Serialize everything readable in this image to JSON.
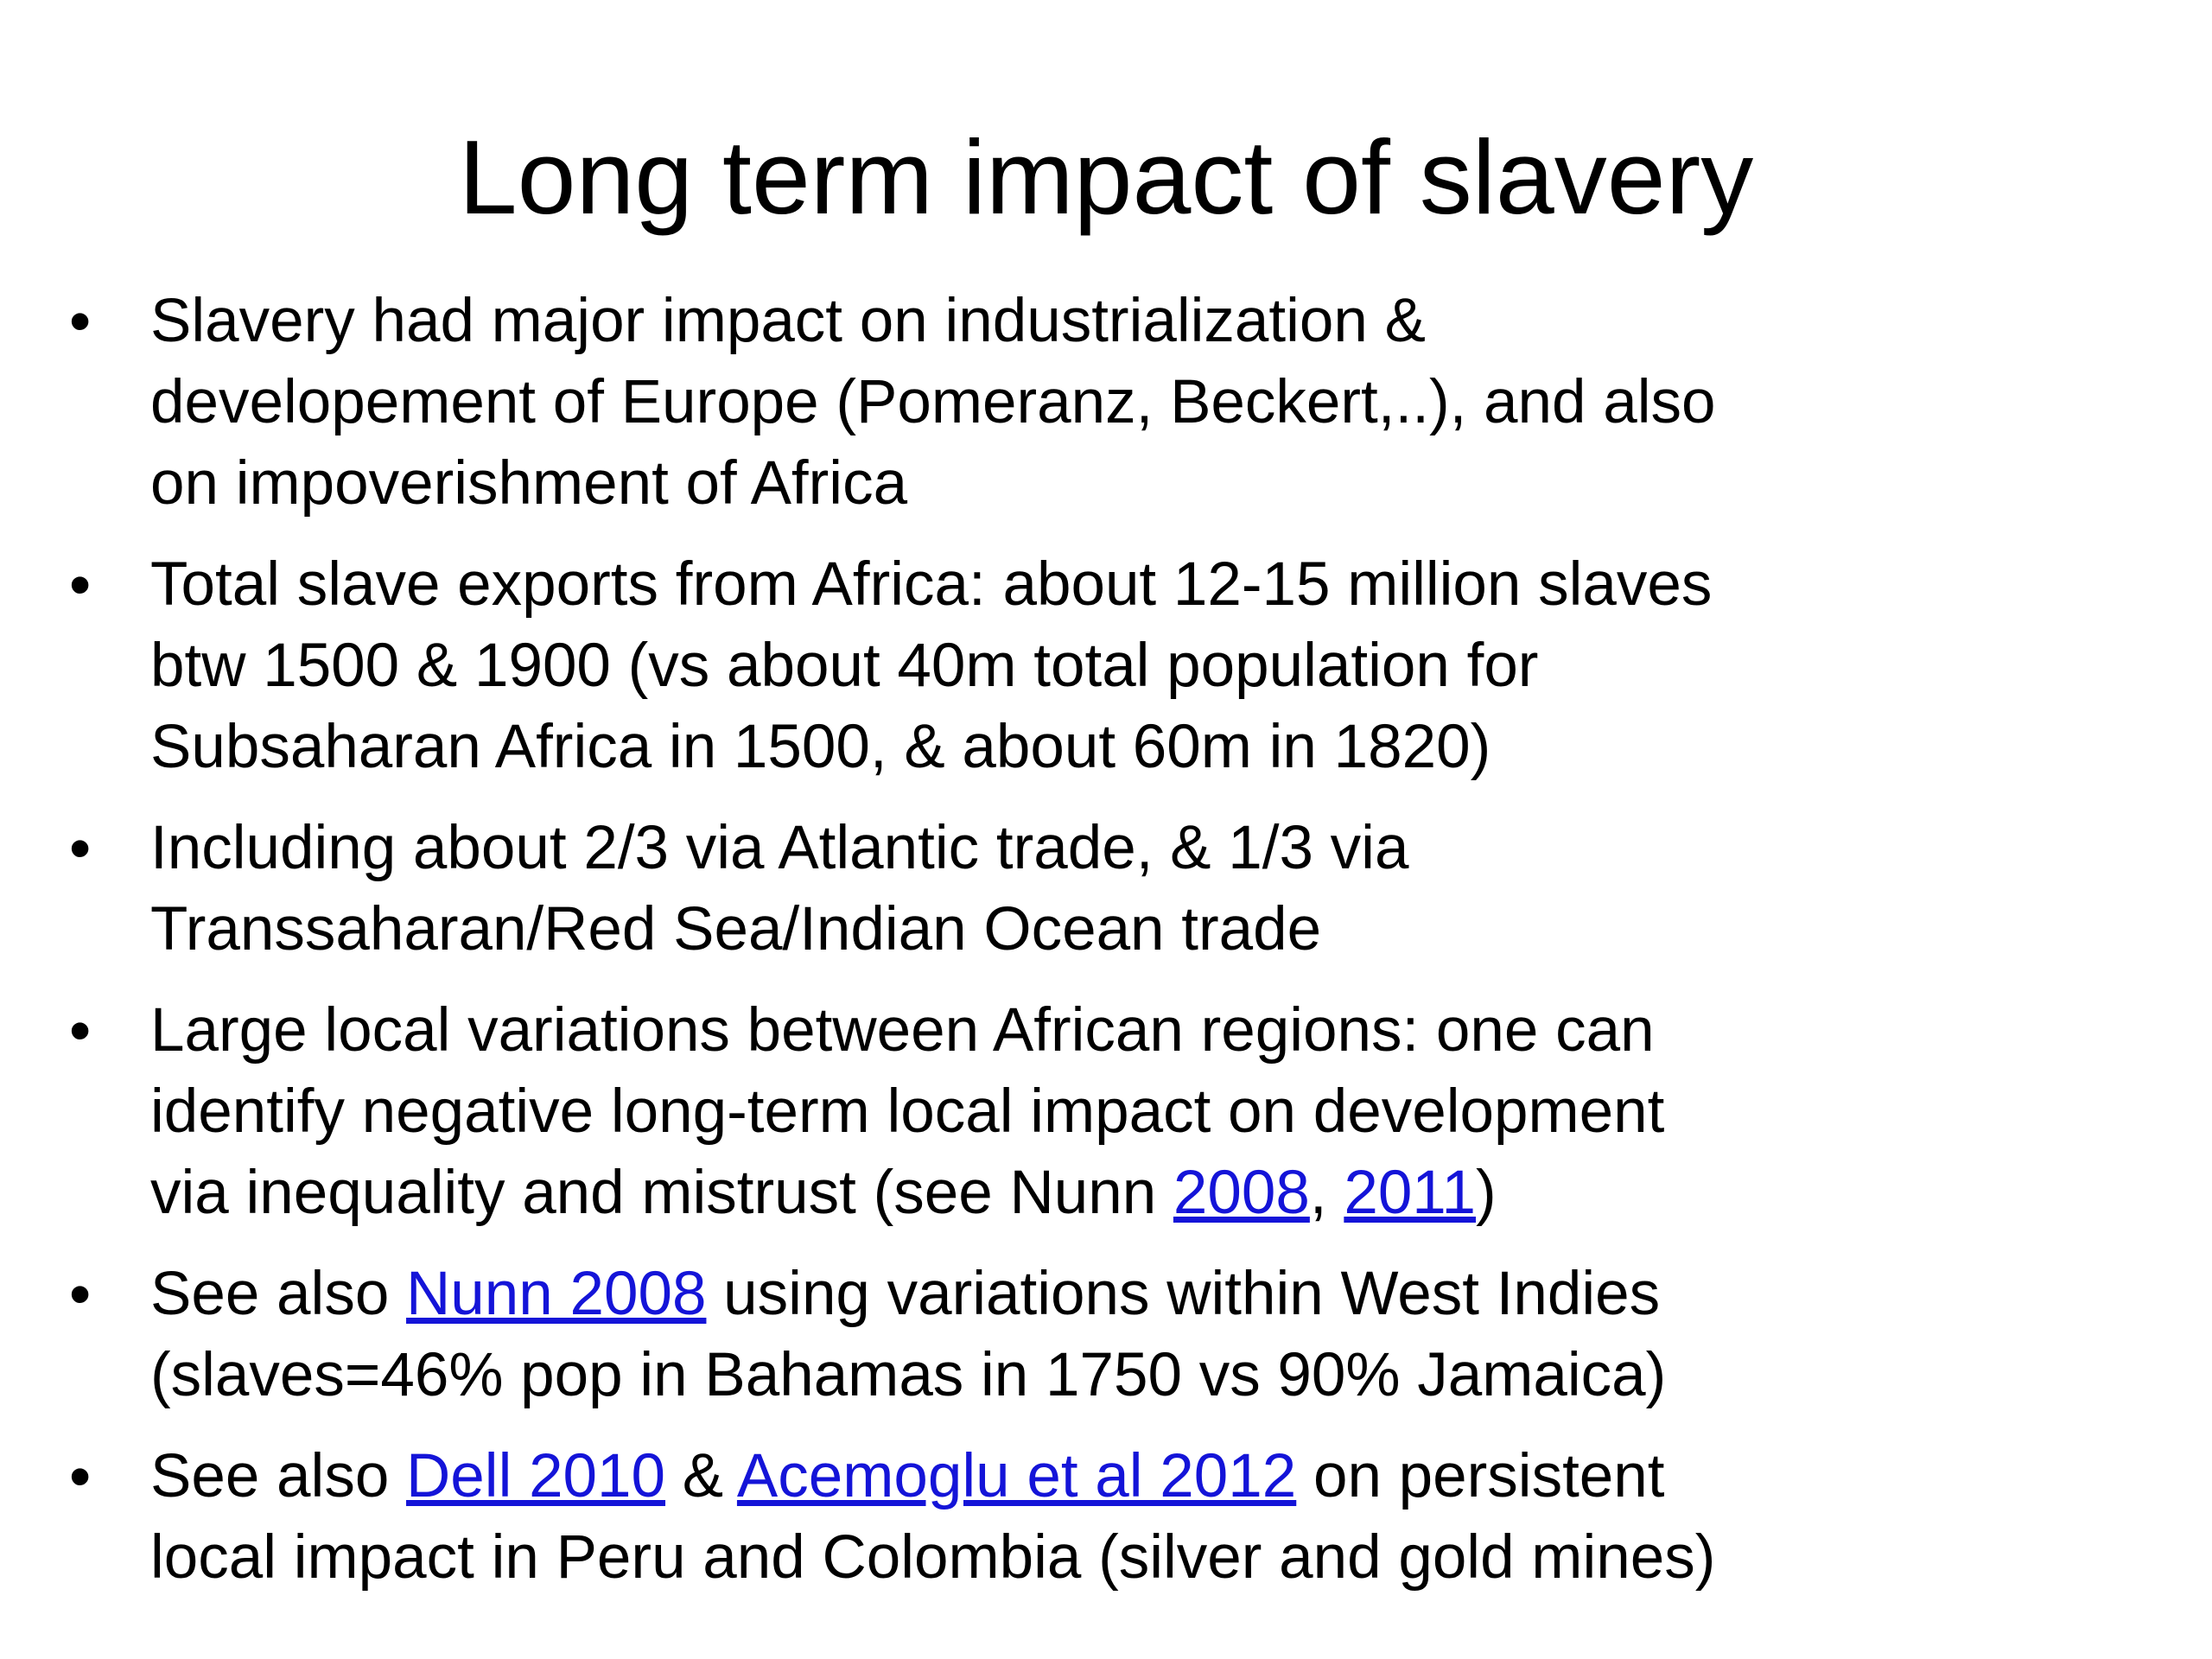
{
  "title": "Long term impact of slavery",
  "bullets": [
    {
      "lines": [
        [
          "Slavery had major impact on industrialization &"
        ],
        [
          "developement of Europe (Pomeranz, Beckert,..), and also"
        ],
        [
          "on impoverishment of Africa"
        ]
      ]
    },
    {
      "lines": [
        [
          "Total slave exports from Africa: about 12-15 million slaves"
        ],
        [
          "btw 1500 & 1900 (vs about 40m total population for"
        ],
        [
          "Subsaharan Africa in 1500, & about 60m in 1820)"
        ]
      ]
    },
    {
      "lines": [
        [
          "Including about 2/3 via Atlantic trade, & 1/3 via"
        ],
        [
          "Transsaharan/Red Sea/Indian Ocean trade"
        ]
      ]
    },
    {
      "lines": [
        [
          "Large local variations between African regions: one can"
        ],
        [
          "identify negative long-term local impact on development"
        ],
        [
          "via inequality and mistrust (see Nunn ",
          {
            "link": "2008"
          },
          ", ",
          {
            "link": "2011"
          },
          ")"
        ]
      ]
    },
    {
      "lines": [
        [
          "See also ",
          {
            "link": "Nunn 2008"
          },
          " using variations within West Indies"
        ],
        [
          "(slaves=46% pop in Bahamas in 1750 vs 90% Jamaica)"
        ]
      ]
    },
    {
      "lines": [
        [
          "See also ",
          {
            "link": "Dell 2010"
          },
          " & ",
          {
            "link": "Acemoglu et al 2012"
          },
          " on persistent"
        ],
        [
          "local impact in Peru and Colombia (silver and gold mines)"
        ]
      ]
    }
  ]
}
